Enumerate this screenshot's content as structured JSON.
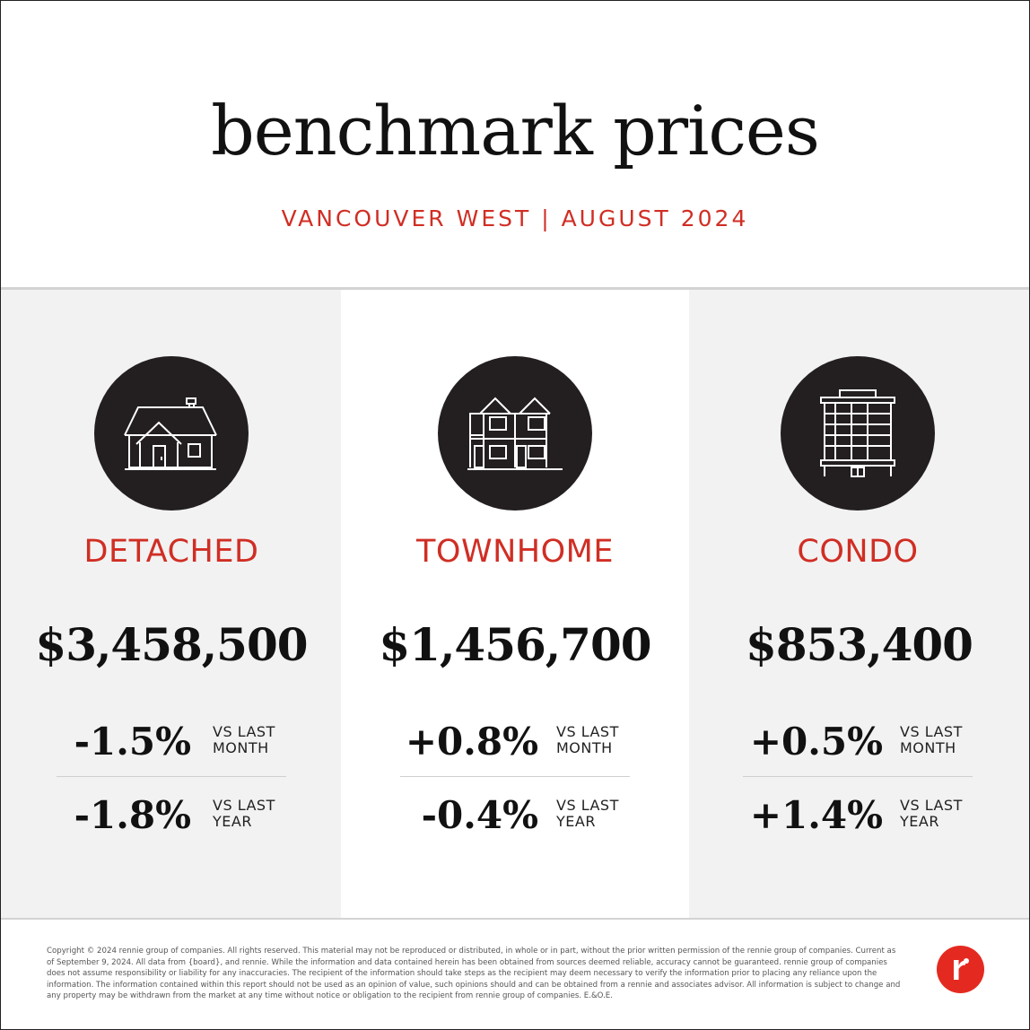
{
  "header": {
    "title": "benchmark prices",
    "subtitle": "VANCOUVER WEST | AUGUST 2024"
  },
  "colors": {
    "accent": "#d02e24",
    "icon_bg": "#231f20",
    "panel_bg": "#f2f2f2",
    "logo_red": "#e42a20"
  },
  "columns": [
    {
      "icon": "detached-house-icon",
      "label": "DETACHED",
      "price": "$3,458,500",
      "month_change": "-1.5%",
      "month_desc_1": "VS LAST",
      "month_desc_2": "MONTH",
      "year_change": "-1.8%",
      "year_desc_1": "VS LAST",
      "year_desc_2": "YEAR"
    },
    {
      "icon": "townhome-icon",
      "label": "TOWNHOME",
      "price": "$1,456,700",
      "month_change": "+0.8%",
      "month_desc_1": "VS LAST",
      "month_desc_2": "MONTH",
      "year_change": "-0.4%",
      "year_desc_1": "VS LAST",
      "year_desc_2": "YEAR"
    },
    {
      "icon": "condo-building-icon",
      "label": "CONDO",
      "price": "$853,400",
      "month_change": "+0.5%",
      "month_desc_1": "VS LAST",
      "month_desc_2": "MONTH",
      "year_change": "+1.4%",
      "year_desc_1": "VS LAST",
      "year_desc_2": "YEAR"
    }
  ],
  "footer": {
    "disclaimer": "Copyright © 2024 rennie group of companies. All rights reserved. This material may not be reproduced or distributed, in whole or in part, without the prior written permission of the rennie group of companies. Current as of September 9, 2024. All data from {board}, and rennie. While the information and data contained herein has been obtained from sources deemed reliable, accuracy cannot be guaranteed. rennie group of companies does not assume responsibility or liability for any inaccuracies. The recipient of the information should take steps as the recipient may deem necessary to verify the information prior to placing any reliance upon the information. The information contained within this report should not be used as an opinion of value, such opinions should and can be obtained from a rennie and associates advisor. All information is subject to change and any property may be withdrawn from the market at any time without notice or obligation to the recipient from rennie group of companies. E.&O.E.",
    "logo_icon": "rennie-logo-icon",
    "logo_text": "r"
  }
}
